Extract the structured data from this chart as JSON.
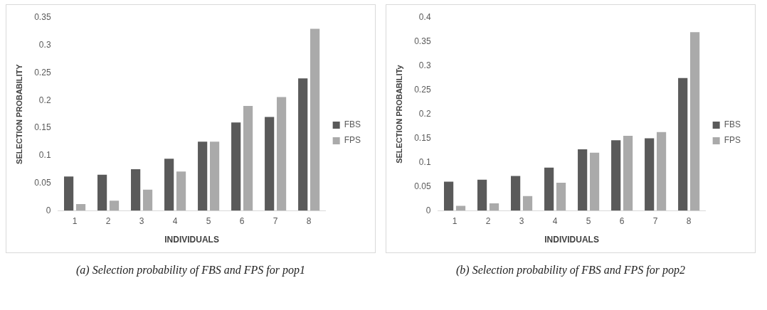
{
  "chart_data": [
    {
      "type": "bar",
      "xlabel": "INDIVIDUALS",
      "ylabel": "SELECTION PROBABILITY",
      "categories": [
        "1",
        "2",
        "3",
        "4",
        "5",
        "6",
        "7",
        "8"
      ],
      "series": [
        {
          "name": "FBS",
          "color": "#5a5a5a",
          "values": [
            0.062,
            0.065,
            0.075,
            0.094,
            0.125,
            0.16,
            0.17,
            0.24
          ]
        },
        {
          "name": "FPS",
          "color": "#aaaaaa",
          "values": [
            0.012,
            0.018,
            0.038,
            0.071,
            0.125,
            0.19,
            0.206,
            0.33
          ]
        }
      ],
      "ylim": [
        0,
        0.35
      ],
      "yticks": [
        0,
        0.05,
        0.1,
        0.15,
        0.2,
        0.25,
        0.3,
        0.35
      ],
      "grid": false,
      "legend": "right",
      "annotations": [
        "(a) Selection probability of FBS and FPS for pop1"
      ]
    },
    {
      "type": "bar",
      "xlabel": "INDIVIDUALS",
      "ylabel": "SELECTION PROBABILITy",
      "categories": [
        "1",
        "2",
        "3",
        "4",
        "5",
        "6",
        "7",
        "8"
      ],
      "series": [
        {
          "name": "FBS",
          "color": "#5a5a5a",
          "values": [
            0.06,
            0.064,
            0.072,
            0.089,
            0.127,
            0.146,
            0.15,
            0.275
          ]
        },
        {
          "name": "FPS",
          "color": "#aaaaaa",
          "values": [
            0.01,
            0.015,
            0.03,
            0.058,
            0.12,
            0.155,
            0.163,
            0.37
          ]
        }
      ],
      "ylim": [
        0,
        0.4
      ],
      "yticks": [
        0,
        0.05,
        0.1,
        0.15,
        0.2,
        0.25,
        0.3,
        0.35,
        0.4
      ],
      "grid": false,
      "legend": "right",
      "annotations": [
        "(b) Selection probability of FBS and FPS for pop2"
      ]
    }
  ]
}
